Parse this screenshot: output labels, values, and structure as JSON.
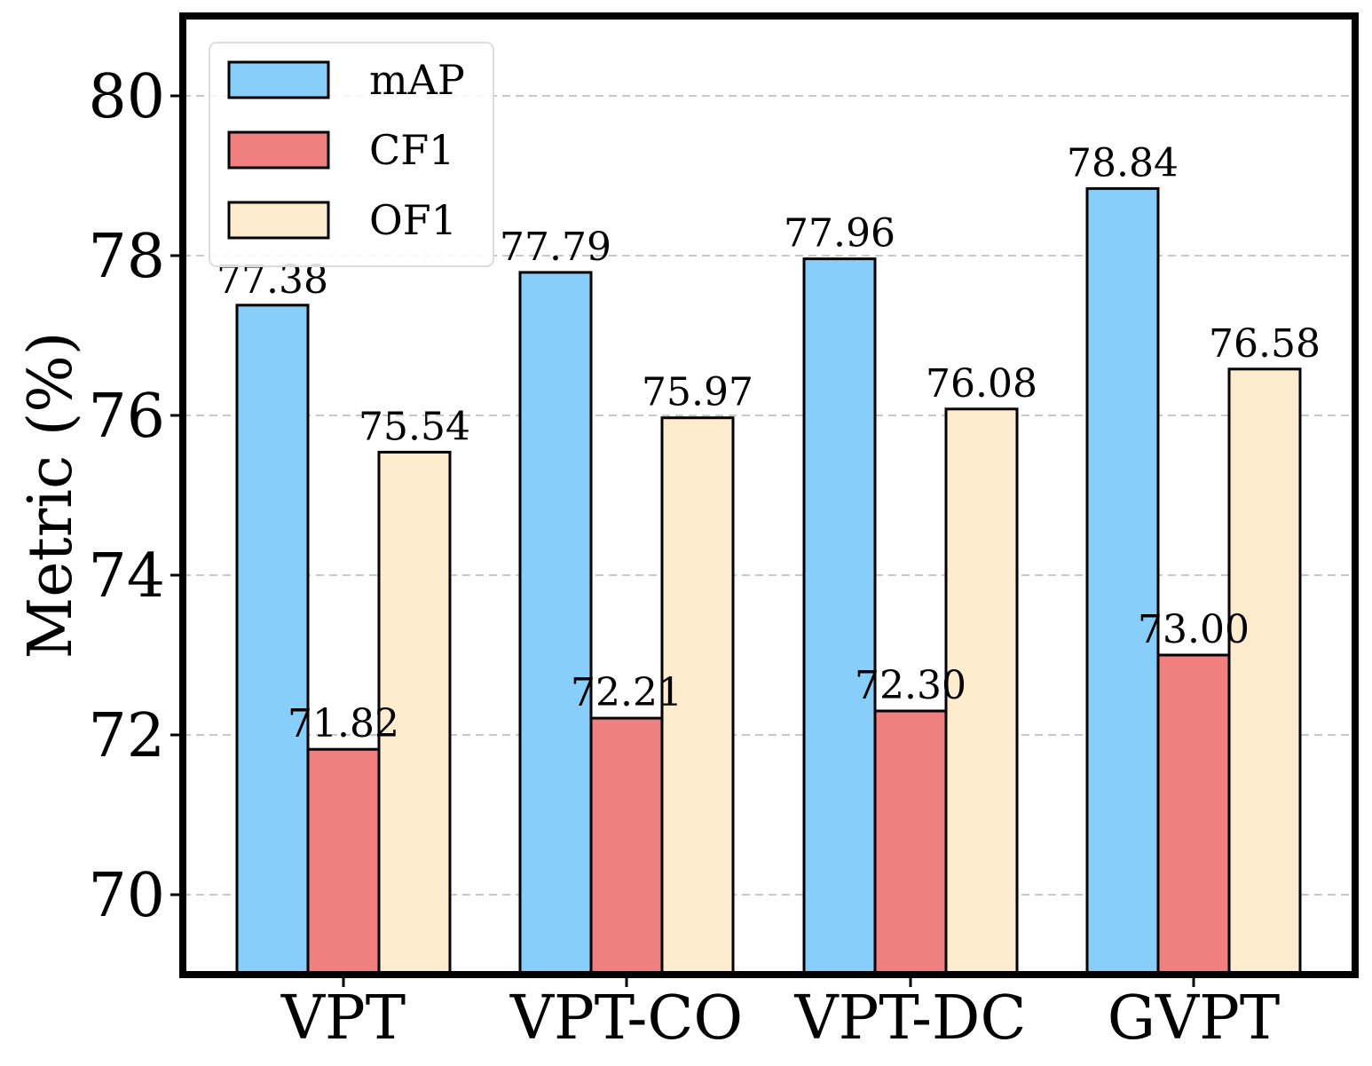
{
  "chart_data": {
    "type": "bar",
    "title": "",
    "xlabel": "",
    "ylabel": "Metric (%)",
    "ylim": [
      69,
      81
    ],
    "yticks": [
      70,
      72,
      74,
      76,
      78,
      80
    ],
    "grid": "y, dashed",
    "legend_position": "top-left",
    "categories": [
      "VPT",
      "VPT-CO",
      "VPT-DC",
      "GVPT"
    ],
    "series": [
      {
        "name": "mAP",
        "color": "#87CEFA",
        "values": [
          77.38,
          77.79,
          77.96,
          78.84
        ],
        "labels": [
          "77.38",
          "77.79",
          "77.96",
          "78.84"
        ]
      },
      {
        "name": "CF1",
        "color": "#F08080",
        "values": [
          71.82,
          72.21,
          72.3,
          73.0
        ],
        "labels": [
          "71.82",
          "72.21",
          "72.30",
          "73.00"
        ]
      },
      {
        "name": "OF1",
        "color": "#FFEBCD",
        "values": [
          75.54,
          75.97,
          76.08,
          76.58
        ],
        "labels": [
          "75.54",
          "75.97",
          "76.08",
          "76.58"
        ]
      }
    ]
  }
}
